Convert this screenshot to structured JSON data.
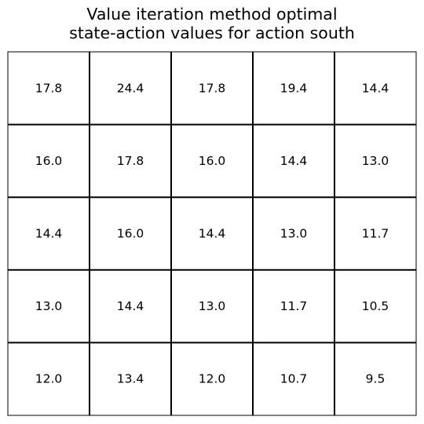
{
  "chart_data": {
    "type": "table",
    "title_lines": [
      "Value iteration method optimal",
      "state-action values for action south"
    ],
    "rows": [
      [
        "17.8",
        "24.4",
        "17.8",
        "19.4",
        "14.4"
      ],
      [
        "16.0",
        "17.8",
        "16.0",
        "14.4",
        "13.0"
      ],
      [
        "14.4",
        "16.0",
        "14.4",
        "13.0",
        "11.7"
      ],
      [
        "13.0",
        "14.4",
        "13.0",
        "11.7",
        "10.5"
      ],
      [
        "12.0",
        "13.4",
        "12.0",
        "10.7",
        "9.5"
      ]
    ],
    "grid": true
  }
}
